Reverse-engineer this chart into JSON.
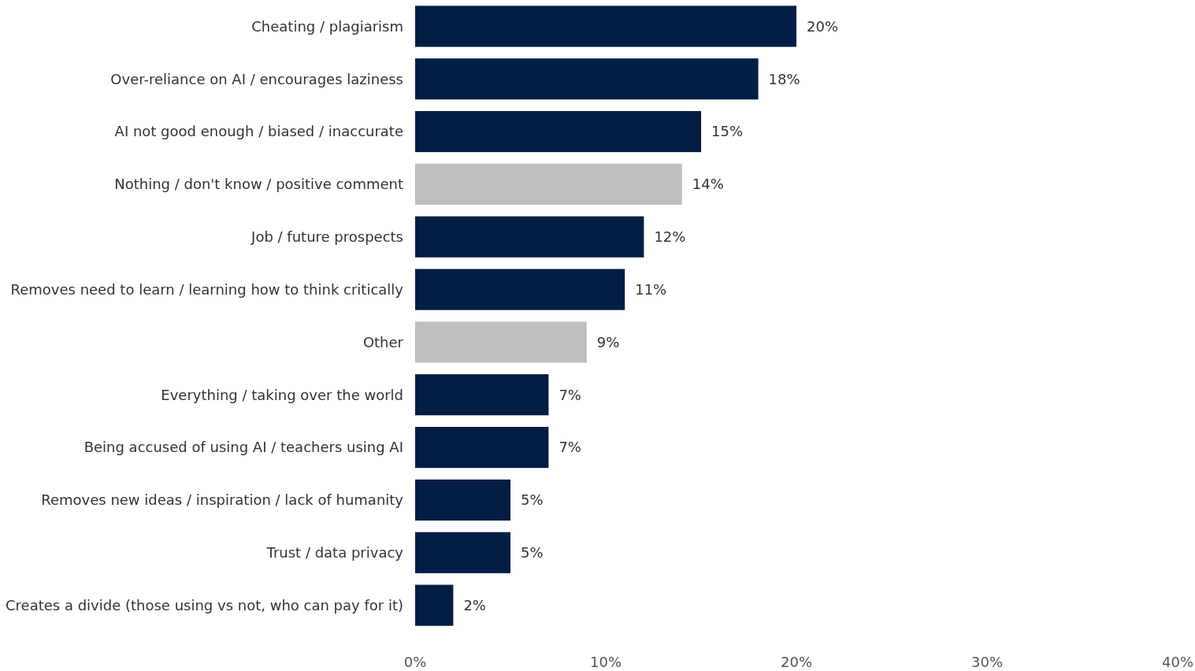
{
  "chart_data": {
    "type": "bar",
    "orientation": "horizontal",
    "categories": [
      "Cheating / plagiarism",
      "Over-reliance on AI / encourages laziness",
      "AI not good enough / biased / inaccurate",
      "Nothing / don't know / positive comment",
      "Job / future prospects",
      "Removes need to learn / learning how to think critically",
      "Other",
      "Everything / taking over the world",
      "Being accused of using AI / teachers using AI",
      "Removes new ideas / inspiration / lack of humanity",
      "Trust / data privacy",
      "Creates a divide (those using vs not, who can pay for it)"
    ],
    "values": [
      20,
      18,
      15,
      14,
      12,
      11,
      9,
      7,
      7,
      5,
      5,
      2
    ],
    "value_labels": [
      "20%",
      "18%",
      "15%",
      "14%",
      "12%",
      "11%",
      "9%",
      "7%",
      "7%",
      "5%",
      "5%",
      "2%"
    ],
    "colors": [
      "#031d44",
      "#031d44",
      "#031d44",
      "#bfbfbf",
      "#031d44",
      "#031d44",
      "#bfbfbf",
      "#031d44",
      "#031d44",
      "#031d44",
      "#031d44",
      "#031d44"
    ],
    "xlim": [
      0,
      40
    ],
    "xticks": [
      {
        "value": 0,
        "label": "0%"
      },
      {
        "value": 10,
        "label": "10%"
      },
      {
        "value": 20,
        "label": "20%"
      },
      {
        "value": 30,
        "label": "30%"
      },
      {
        "value": 40,
        "label": "40%"
      }
    ],
    "grid": false
  }
}
